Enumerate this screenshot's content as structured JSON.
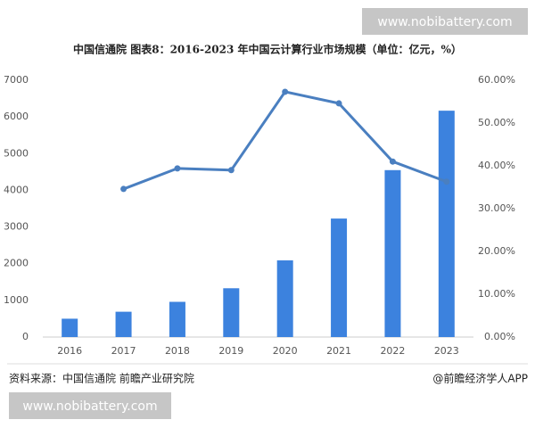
{
  "chart_data": {
    "type": "bar",
    "title": "中国信通院  图表8：2016-2023 年中国云计算行业市场规模（单位：亿元，%）",
    "source": "资料来源：中国信通院 前瞻产业研究院",
    "credit": "@前瞻经济学人APP",
    "watermarks": [
      "www.nobibattery.com",
      "www.nobibattery.com"
    ],
    "categories": [
      "2016",
      "2017",
      "2018",
      "2019",
      "2020",
      "2021",
      "2022",
      "2023"
    ],
    "series": [
      {
        "type": "bar",
        "color": "#3c82de",
        "values": [
          500,
          690,
          960,
          1330,
          2090,
          3230,
          4550,
          6170
        ]
      },
      {
        "type": "line",
        "axis": "y2",
        "color": "#4a7fc0",
        "values": [
          null,
          34.6,
          39.4,
          39.0,
          57.3,
          54.6,
          41.0,
          36.3
        ]
      }
    ],
    "ylim": [
      0,
      7000
    ],
    "yticks": [
      0,
      1000,
      2000,
      3000,
      4000,
      5000,
      6000,
      7000
    ],
    "y2lim": [
      0,
      60
    ],
    "y2ticks": [
      {
        "value": 0,
        "label": "0.00%"
      },
      {
        "value": 10,
        "label": "10.00%"
      },
      {
        "value": 20,
        "label": "20.00%"
      },
      {
        "value": 30,
        "label": "30.00%"
      },
      {
        "value": 40,
        "label": "40.00%"
      },
      {
        "value": 50,
        "label": "50.00%"
      },
      {
        "value": 60,
        "label": "60.00%"
      }
    ],
    "grid": false
  }
}
